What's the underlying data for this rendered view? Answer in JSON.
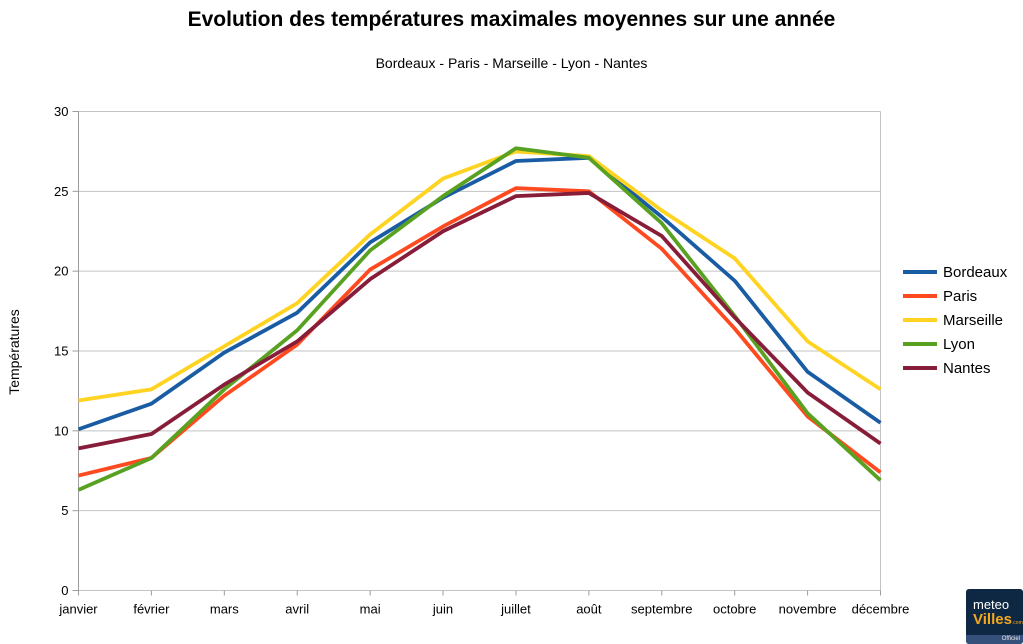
{
  "title": "Evolution des températures maximales moyennes sur une année",
  "subtitle": "Bordeaux - Paris - Marseille - Lyon - Nantes",
  "y_axis_title": "Températures",
  "logo": {
    "line1": "meteo",
    "line2": "Villes",
    "suffix": ".com",
    "badge": "Officiel"
  },
  "chart_data": {
    "type": "line",
    "title": "Evolution des températures maximales moyennes sur une année",
    "subtitle": "Bordeaux - Paris - Marseille - Lyon - Nantes",
    "ylabel": "Températures",
    "xlabel": "",
    "ylim": [
      0,
      30
    ],
    "y_ticks": [
      0,
      5,
      10,
      15,
      20,
      25,
      30
    ],
    "grid": true,
    "legend_position": "right",
    "categories": [
      "janvier",
      "février",
      "mars",
      "avril",
      "mai",
      "juin",
      "juillet",
      "août",
      "septembre",
      "octobre",
      "novembre",
      "décembre"
    ],
    "series": [
      {
        "name": "Bordeaux",
        "color": "#1A5CA4",
        "values": [
          10.1,
          11.7,
          14.9,
          17.4,
          21.8,
          24.6,
          26.9,
          27.1,
          23.4,
          19.4,
          13.7,
          10.5
        ]
      },
      {
        "name": "Paris",
        "color": "#FF4A1F",
        "values": [
          7.2,
          8.3,
          12.2,
          15.4,
          20.1,
          22.8,
          25.2,
          25.0,
          21.4,
          16.4,
          10.9,
          7.4
        ]
      },
      {
        "name": "Marseille",
        "color": "#FFD321",
        "values": [
          11.9,
          12.6,
          15.3,
          18.0,
          22.3,
          25.8,
          27.5,
          27.2,
          23.8,
          20.8,
          15.6,
          12.6
        ]
      },
      {
        "name": "Lyon",
        "color": "#58A121",
        "values": [
          6.3,
          8.3,
          12.6,
          16.3,
          21.3,
          24.7,
          27.7,
          27.1,
          23.0,
          17.2,
          11.1,
          6.9
        ]
      },
      {
        "name": "Nantes",
        "color": "#871D39",
        "values": [
          8.9,
          9.8,
          12.9,
          15.6,
          19.5,
          22.5,
          24.7,
          24.9,
          22.2,
          17.1,
          12.4,
          9.2
        ]
      }
    ],
    "colors": {
      "grid": "#C3C3C3",
      "axis": "#9C9C9C",
      "tick_text": "#000000"
    }
  }
}
